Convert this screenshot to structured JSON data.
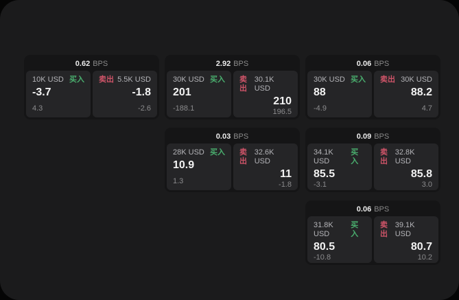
{
  "window": {
    "name": "quotes-dashboard"
  },
  "labels": {
    "bps": "BPS",
    "buy": "买入",
    "sell": "卖出"
  },
  "colors": {
    "buy": "#4aae6e",
    "sell": "#ce5468",
    "window_bg": "#1b1b1c",
    "card_bg": "#151516",
    "panel_bg": "#252527"
  },
  "cards": [
    {
      "row": 1,
      "col": 1,
      "bps": "0.62",
      "buy": {
        "size": "10K USD",
        "price": "-3.7",
        "delta": "4.3"
      },
      "sell": {
        "size": "5.5K USD",
        "price": "-1.8",
        "delta": "-2.6"
      }
    },
    {
      "row": 1,
      "col": 2,
      "bps": "2.92",
      "buy": {
        "size": "30K USD",
        "price": "201",
        "delta": "-188.1"
      },
      "sell": {
        "size": "30.1K USD",
        "price": "210",
        "delta": "196.5"
      }
    },
    {
      "row": 1,
      "col": 3,
      "bps": "0.06",
      "buy": {
        "size": "30K USD",
        "price": "88",
        "delta": "-4.9"
      },
      "sell": {
        "size": "30K USD",
        "price": "88.2",
        "delta": "4.7"
      }
    },
    {
      "row": 2,
      "col": 2,
      "bps": "0.03",
      "buy": {
        "size": "28K USD",
        "price": "10.9",
        "delta": "1.3"
      },
      "sell": {
        "size": "32.6K USD",
        "price": "11",
        "delta": "-1.8"
      }
    },
    {
      "row": 2,
      "col": 3,
      "bps": "0.09",
      "buy": {
        "size": "34.1K USD",
        "price": "85.5",
        "delta": "-3.1"
      },
      "sell": {
        "size": "32.8K USD",
        "price": "85.8",
        "delta": "3.0"
      }
    },
    {
      "row": 3,
      "col": 3,
      "bps": "0.06",
      "buy": {
        "size": "31.8K USD",
        "price": "80.5",
        "delta": "-10.8"
      },
      "sell": {
        "size": "39.1K USD",
        "price": "80.7",
        "delta": "10.2"
      }
    }
  ]
}
